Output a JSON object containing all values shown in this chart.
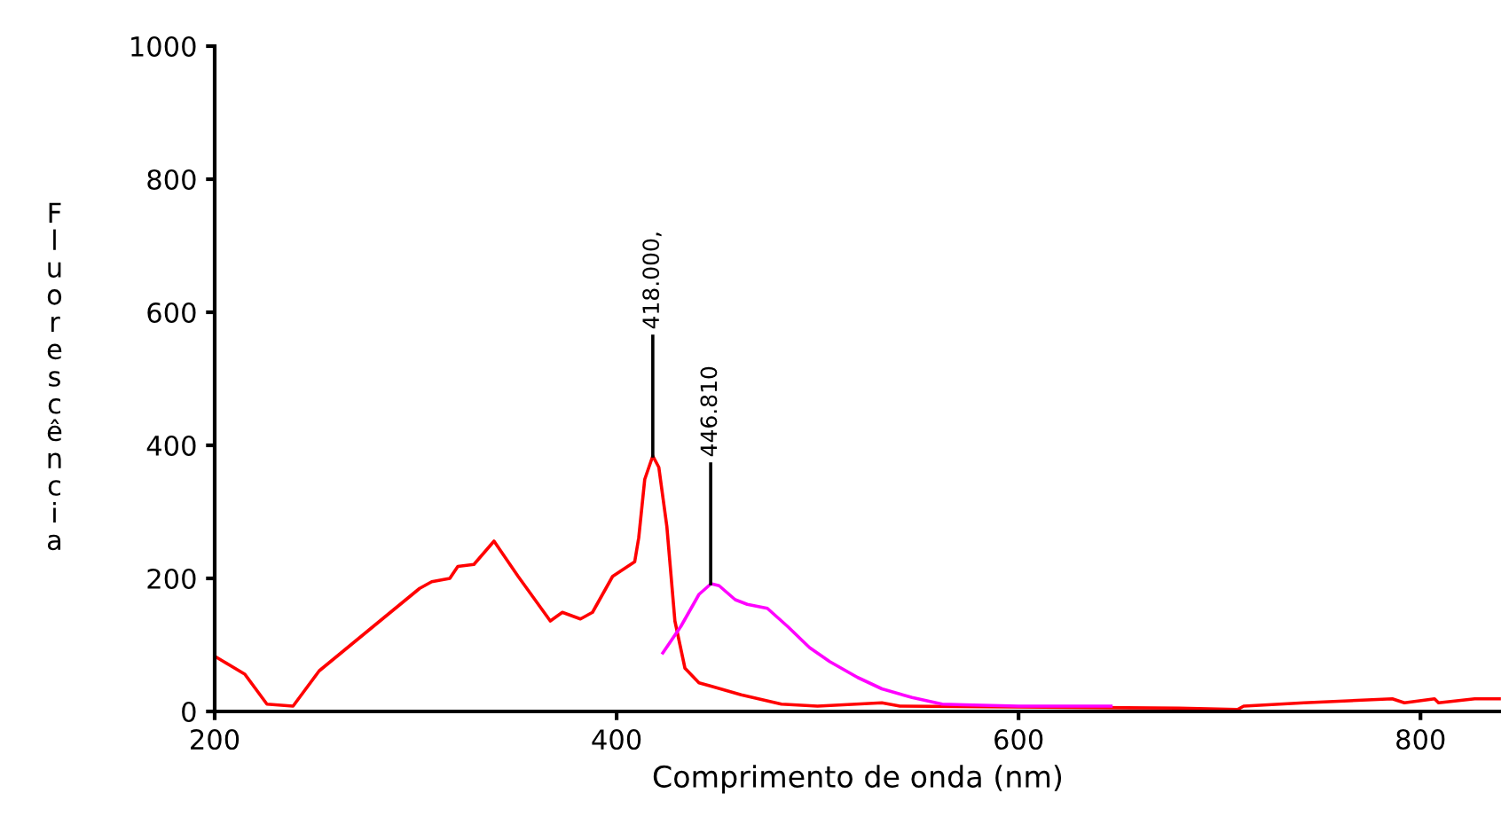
{
  "chart_data": {
    "type": "line",
    "xlabel": "Comprimento de onda (nm)",
    "ylabel": "Fluorescência",
    "series": [
      {
        "color": "#ff0000",
        "x": [
          200,
          215,
          226,
          239,
          252,
          279,
          302,
          308,
          317,
          321,
          329,
          339,
          351,
          367,
          373,
          382,
          388,
          398,
          409,
          411,
          414,
          418,
          421,
          425,
          429,
          434,
          441,
          447,
          462,
          482,
          500,
          532,
          541,
          680,
          709,
          712,
          742,
          786,
          792,
          807,
          809,
          827,
          840
        ],
        "values": [
          83,
          56,
          11,
          8,
          61,
          128,
          185,
          195,
          200,
          218,
          221,
          256,
          203,
          136,
          149,
          139,
          149,
          203,
          225,
          261,
          349,
          384,
          367,
          278,
          136,
          65,
          43,
          38,
          25,
          11,
          8,
          13,
          8,
          5,
          3,
          8,
          13,
          19,
          13,
          19,
          13,
          19,
          19
        ]
      },
      {
        "color": "#ff00ff",
        "x": [
          423,
          432,
          441,
          447,
          451,
          459,
          465,
          475,
          485,
          496,
          506,
          520,
          532,
          547,
          562,
          573,
          600,
          646
        ],
        "values": [
          88,
          128,
          176,
          192,
          189,
          168,
          161,
          155,
          128,
          96,
          75,
          51,
          34,
          21,
          11,
          10,
          8,
          8
        ]
      }
    ],
    "annotations": [
      {
        "text": "418.000,",
        "x": 418,
        "y": 384
      },
      {
        "text": "446.810",
        "x": 446.8,
        "y": 192
      }
    ],
    "xlim": [
      200,
      840
    ],
    "xticks": [
      200,
      400,
      600,
      800
    ],
    "ylim": [
      0,
      1000
    ],
    "yticks": [
      0,
      200,
      400,
      600,
      800,
      1000
    ],
    "grid": false,
    "legend": false,
    "marker": "none",
    "line_style": "solid"
  }
}
